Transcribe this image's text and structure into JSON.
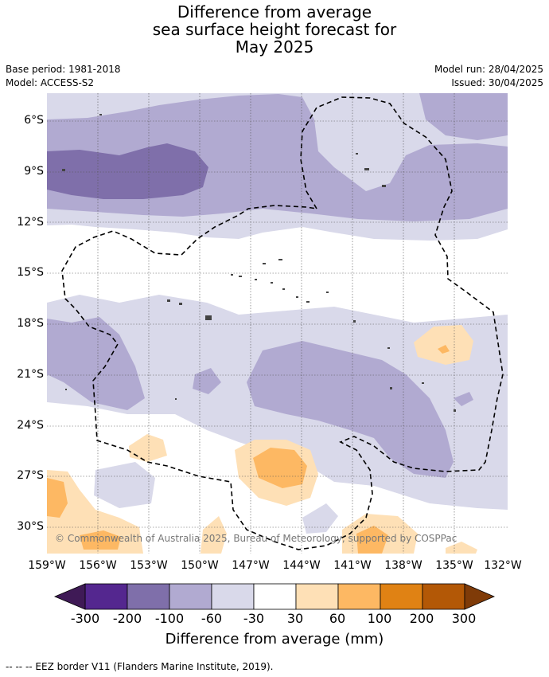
{
  "title": {
    "line1": "Difference from average",
    "line2": "sea surface height forecast for",
    "line3": "May 2025"
  },
  "meta": {
    "base_period": "Base period: 1981-2018",
    "model": "Model: ACCESS-S2",
    "model_run": "Model run: 28/04/2025",
    "issued": "Issued: 30/04/2025"
  },
  "map": {
    "lat_labels": [
      "6°S",
      "9°S",
      "12°S",
      "15°S",
      "18°S",
      "21°S",
      "24°S",
      "27°S",
      "30°S"
    ],
    "lon_labels": [
      "159°W",
      "156°W",
      "153°W",
      "150°W",
      "147°W",
      "144°W",
      "141°W",
      "138°W",
      "135°W",
      "132°W"
    ],
    "copyright": "© Commonwealth of Australia 2025, Bureau of Meteorology, supported by COSPPac"
  },
  "colorbar": {
    "ticks": [
      "-300",
      "-200",
      "-100",
      "-60",
      "-30",
      "30",
      "60",
      "100",
      "200",
      "300"
    ],
    "colors": [
      "#54278f",
      "#7f6faa",
      "#b1aad1",
      "#d9d9ea",
      "#ffffff",
      "#fee0b6",
      "#fdb863",
      "#e08214",
      "#b35806"
    ],
    "under_color": "#3f1a56",
    "over_color": "#7f3b08",
    "title": "Difference from average (mm)"
  },
  "footnote": "--  --  -- EEZ border V11 (Flanders Marine Institute, 2019)."
}
